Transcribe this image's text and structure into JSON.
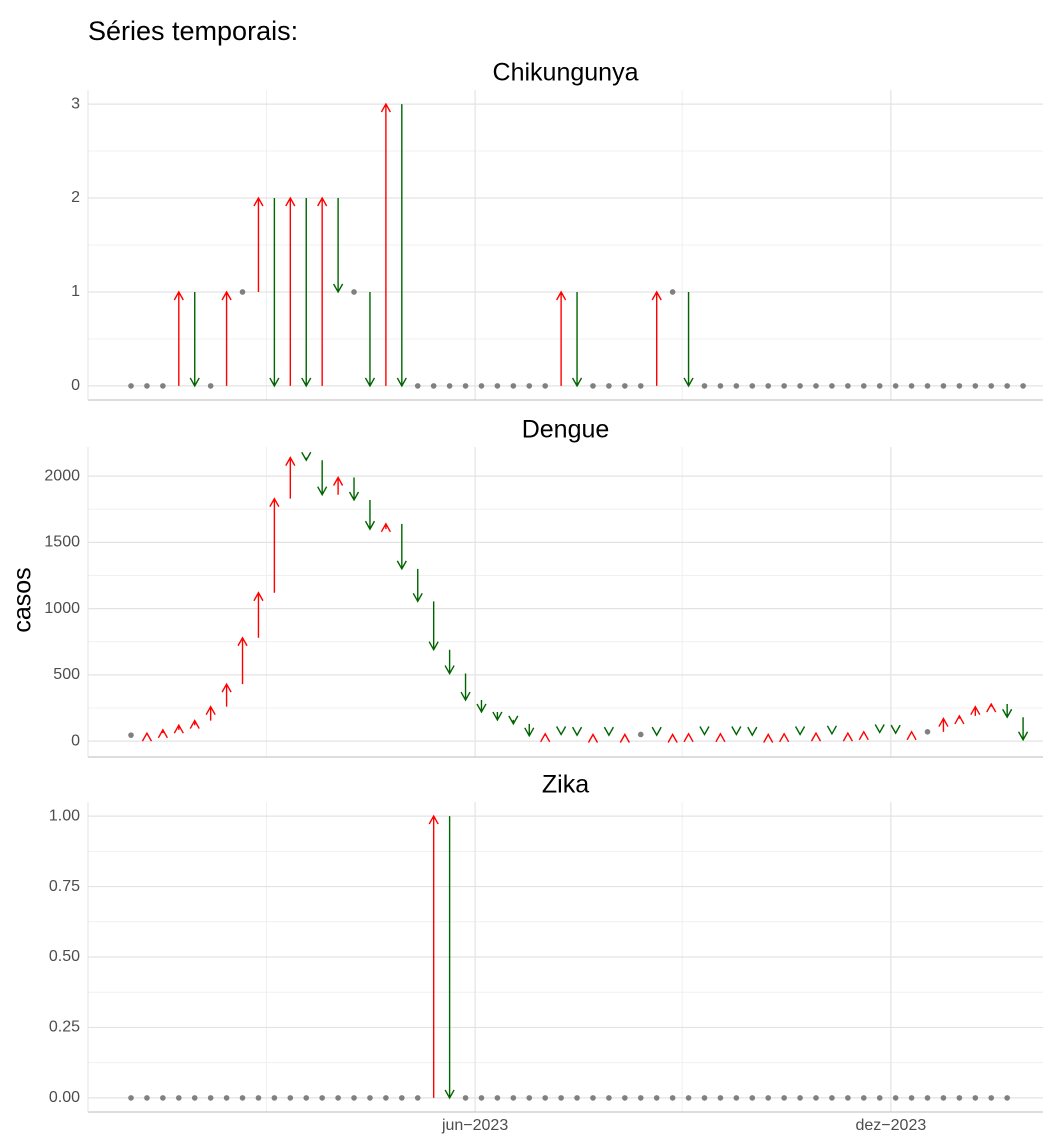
{
  "title": "Séries temporais:",
  "ylabel": "casos",
  "x": [
    1,
    2,
    3,
    4,
    5,
    6,
    7,
    8,
    9,
    10,
    11,
    12,
    13,
    14,
    15,
    16,
    17,
    18,
    19,
    20,
    21,
    22,
    23,
    24,
    25,
    26,
    27,
    28,
    29,
    30,
    31,
    32,
    33,
    34,
    35,
    36,
    37,
    38,
    39,
    40,
    41,
    42,
    43,
    44,
    45,
    46,
    47,
    48,
    49,
    50,
    51,
    52,
    53,
    54,
    55,
    56,
    57
  ],
  "xlim": [
    -1.7,
    58.25
  ],
  "xticks": [
    {
      "value": 22.6,
      "label": "jun−2023"
    },
    {
      "value": 48.7,
      "label": "dez−2023"
    }
  ],
  "minor_xticks": [
    9.5,
    35.6
  ],
  "up_color": "red",
  "down_color": "darkgreen",
  "flat_color": "gray",
  "chart_data": [
    {
      "type": "arrow",
      "title": "Chikungunya",
      "values": [
        0,
        0,
        0,
        1,
        0,
        0,
        1,
        1,
        2,
        0,
        2,
        0,
        2,
        1,
        1,
        0,
        3,
        0,
        0,
        0,
        0,
        0,
        0,
        0,
        0,
        0,
        0,
        1,
        0,
        0,
        0,
        0,
        0,
        1,
        1,
        0,
        0,
        0,
        0,
        0,
        0,
        0,
        0,
        0,
        0,
        0,
        0,
        0,
        0,
        0,
        0,
        0,
        0,
        0,
        0,
        0,
        0
      ],
      "ylim": [
        -0.15,
        3.15
      ],
      "yticks": [
        0,
        1,
        2,
        3
      ],
      "minor_yticks": [
        0.5,
        1.5,
        2.5
      ]
    },
    {
      "type": "arrow",
      "title": "Dengue",
      "values": [
        45,
        60,
        85,
        120,
        155,
        260,
        430,
        780,
        1120,
        1830,
        2140,
        2120,
        1860,
        1990,
        1820,
        1600,
        1640,
        1300,
        1055,
        690,
        510,
        310,
        220,
        160,
        130,
        40,
        55,
        50,
        45,
        50,
        45,
        50,
        50,
        45,
        50,
        55,
        50,
        55,
        50,
        45,
        50,
        55,
        50,
        60,
        55,
        60,
        70,
        65,
        60,
        70,
        70,
        170,
        190,
        260,
        280,
        180,
        10
      ],
      "ylim": [
        -120,
        2220
      ],
      "yticks": [
        0,
        500,
        1000,
        1500,
        2000
      ],
      "minor_yticks": [
        250,
        750,
        1250,
        1750
      ]
    },
    {
      "type": "arrow",
      "title": "Zika",
      "values": [
        0,
        0,
        0,
        0,
        0,
        0,
        0,
        0,
        0,
        0,
        0,
        0,
        0,
        0,
        0,
        0,
        0,
        0,
        0,
        1,
        0,
        0,
        0,
        0,
        0,
        0,
        0,
        0,
        0,
        0,
        0,
        0,
        0,
        0,
        0,
        0,
        0,
        0,
        0,
        0,
        0,
        0,
        0,
        0,
        0,
        0,
        0,
        0,
        0,
        0,
        0,
        0,
        0,
        0,
        0,
        0,
        null
      ],
      "ylim": [
        -0.05,
        1.05
      ],
      "yticks": [
        {
          "value": 0,
          "label": "0.00"
        },
        {
          "value": 0.25,
          "label": "0.25"
        },
        {
          "value": 0.5,
          "label": "0.50"
        },
        {
          "value": 0.75,
          "label": "0.75"
        },
        {
          "value": 1,
          "label": "1.00"
        }
      ],
      "minor_yticks": [
        0.125,
        0.375,
        0.625,
        0.875
      ]
    }
  ]
}
